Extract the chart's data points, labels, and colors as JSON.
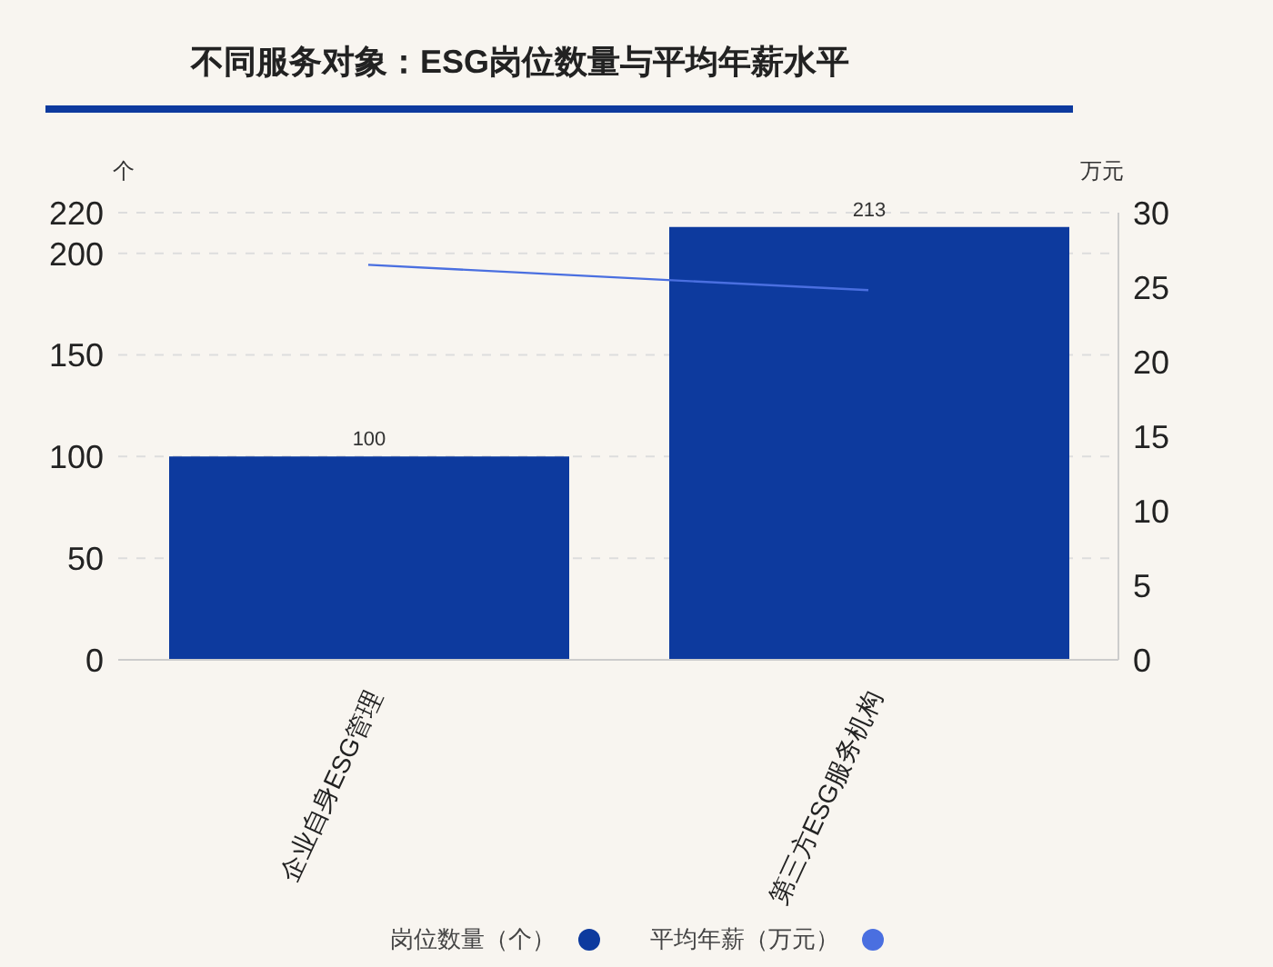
{
  "chart_data": {
    "type": "bar",
    "title": "不同服务对象：ESG岗位数量与平均年薪水平",
    "ylabel": "个",
    "y2label": "万元",
    "categories": [
      "企业自身ESG管理",
      "第三方ESG服务机构"
    ],
    "series": [
      {
        "name": "岗位数量（个）",
        "color": "#0d3a9e",
        "values": [
          100,
          213
        ],
        "value_labels": [
          "100",
          "213"
        ]
      },
      {
        "name": "平均年薪（万元）",
        "type": "line",
        "color": "#4a6fe0",
        "axis": "y2",
        "values": [
          26.5,
          24.8
        ]
      }
    ],
    "ylim": [
      0,
      220
    ],
    "yticks": [
      0,
      50,
      100,
      150,
      200,
      220
    ],
    "y2lim": [
      0,
      30
    ],
    "y2ticks": [
      0,
      5,
      10,
      15,
      20,
      25,
      30
    ],
    "grid": "y",
    "legend": "bottom",
    "marker": "none"
  }
}
